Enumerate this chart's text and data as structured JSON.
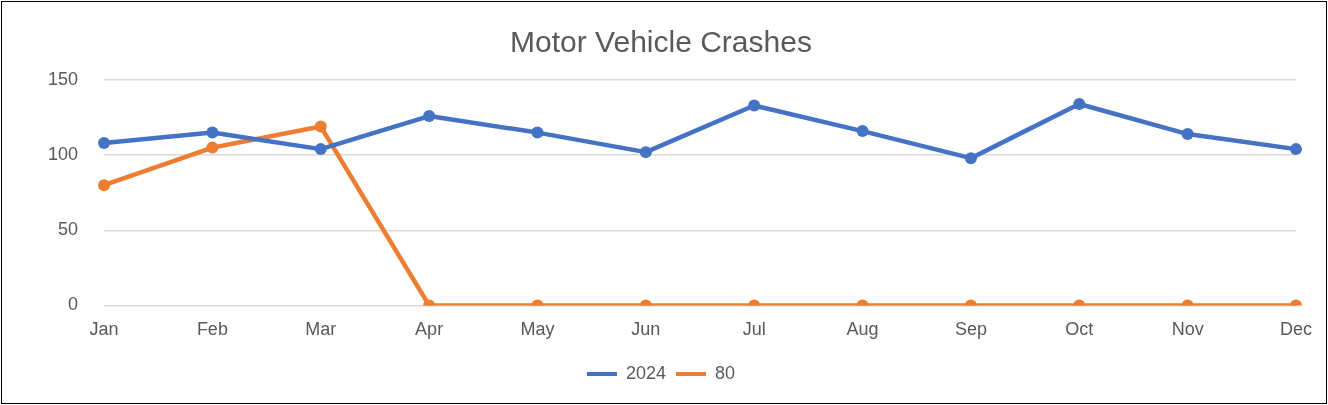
{
  "chart_data": {
    "type": "line",
    "title": "Motor Vehicle Crashes",
    "categories": [
      "Jan",
      "Feb",
      "Mar",
      "Apr",
      "May",
      "Jun",
      "Jul",
      "Aug",
      "Sep",
      "Oct",
      "Nov",
      "Dec"
    ],
    "series": [
      {
        "name": "2024",
        "color": "#4472c4",
        "values": [
          108,
          115,
          104,
          126,
          115,
          102,
          133,
          116,
          98,
          134,
          114,
          104
        ]
      },
      {
        "name": "80",
        "color": "#ed7d31",
        "values": [
          80,
          105,
          119,
          0,
          0,
          0,
          0,
          0,
          0,
          0,
          0,
          0
        ]
      }
    ],
    "ylim": [
      0,
      150
    ],
    "yticks": [
      0,
      50,
      100,
      150
    ],
    "grid": "y",
    "legend": "bottom",
    "marker": "circle",
    "line_style": "solid"
  }
}
